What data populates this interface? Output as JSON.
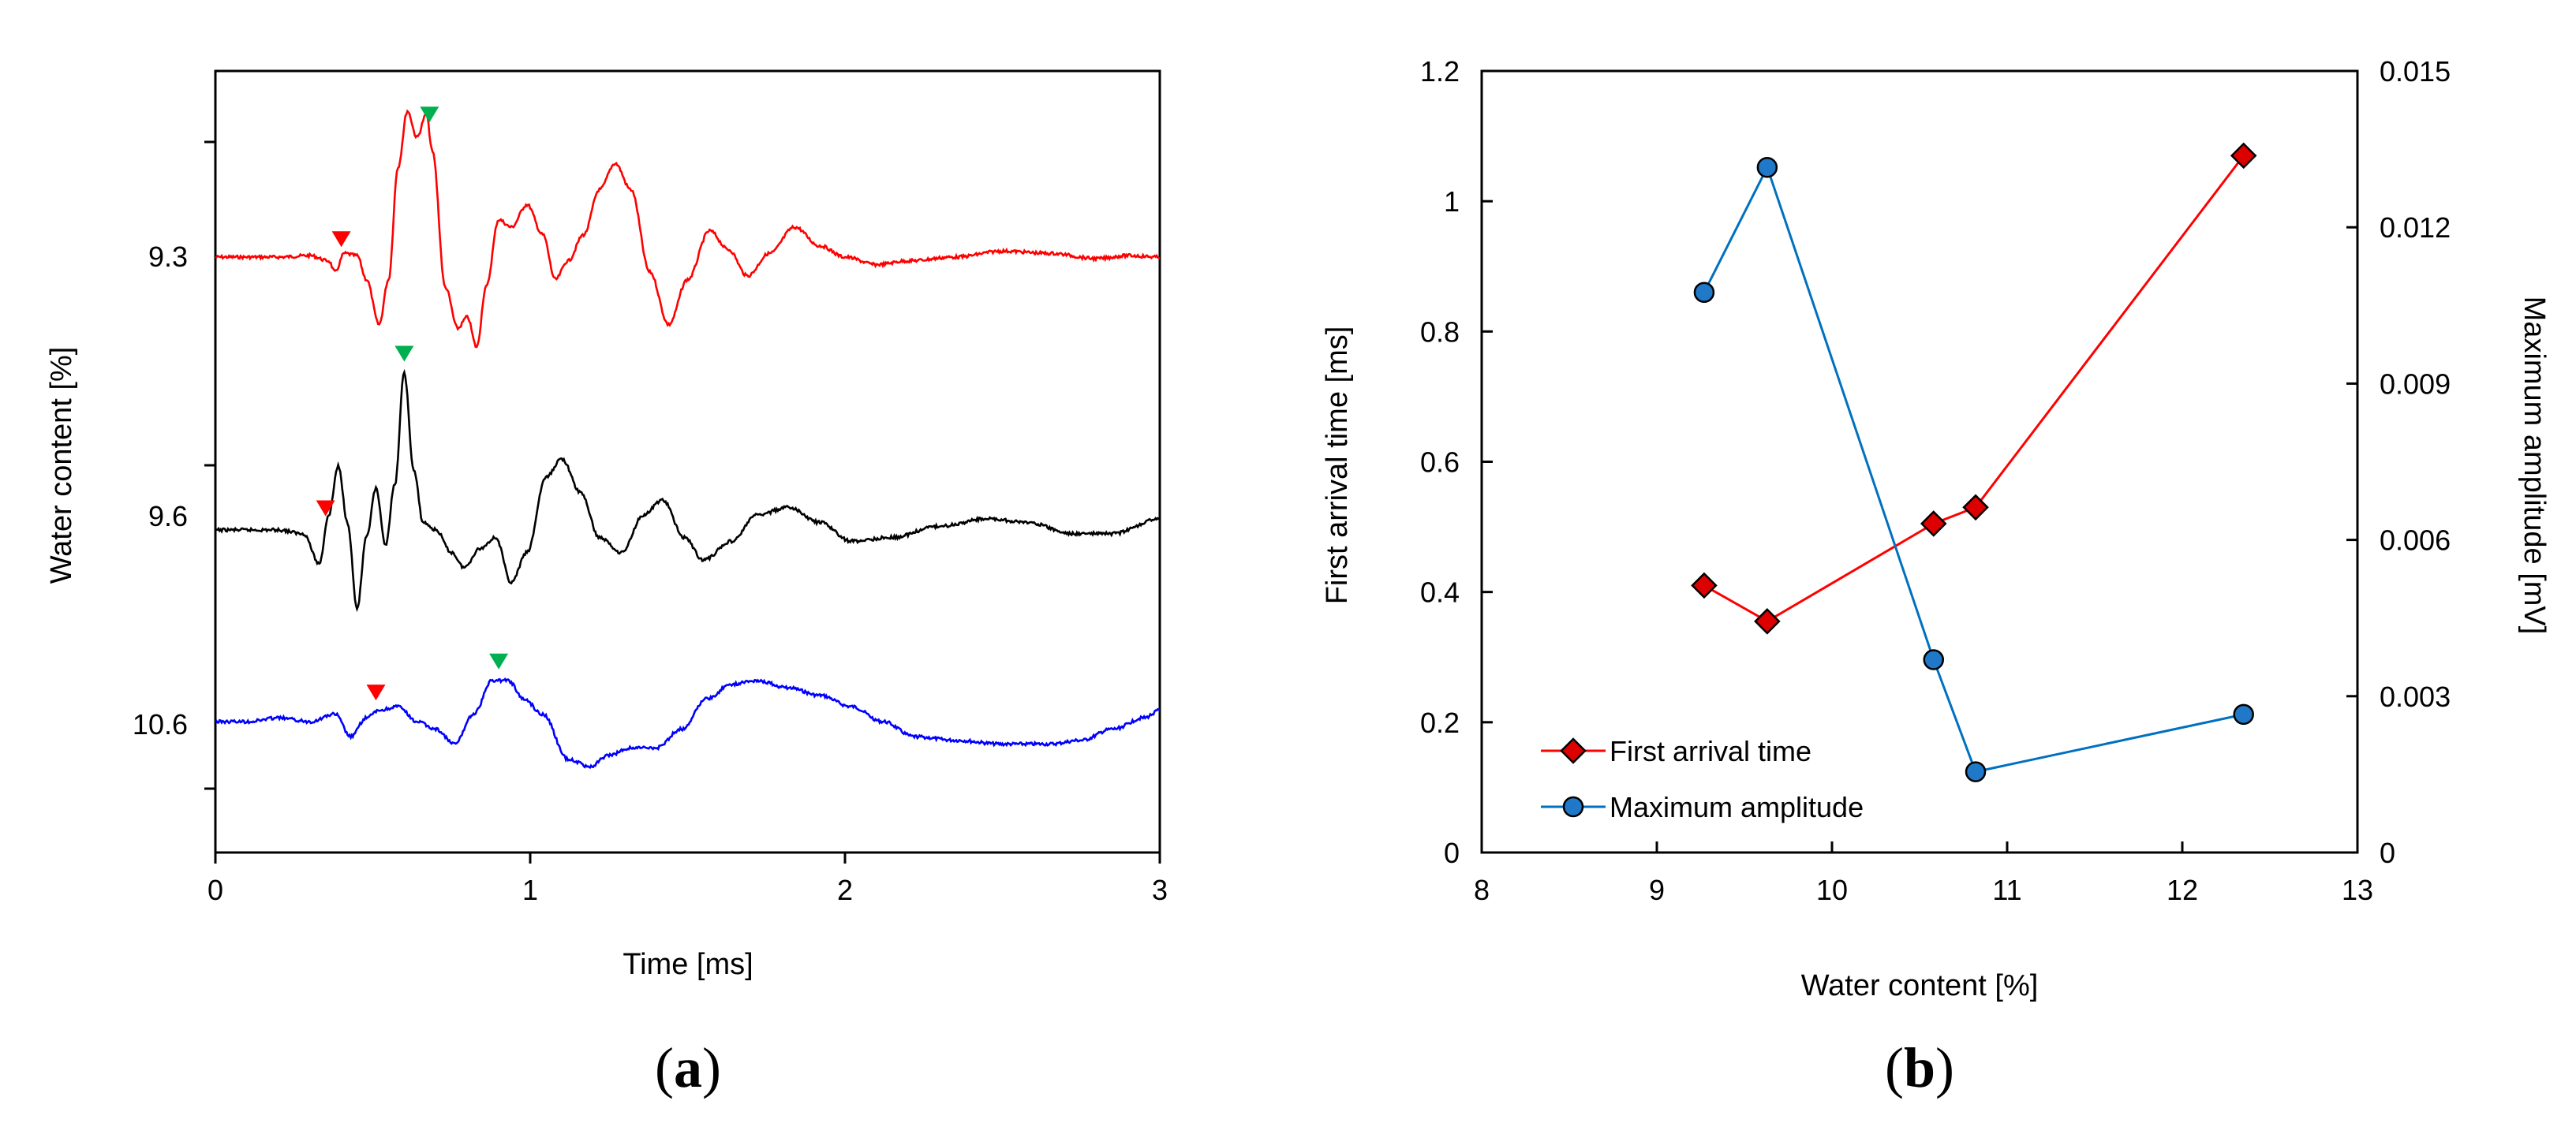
{
  "chart_data": [
    {
      "panel": "(a)",
      "type": "line",
      "panel_label_open": "(",
      "panel_label_letter": "a",
      "panel_label_close": ")",
      "xlabel": "Time [ms]",
      "ylabel": "Water content [%]",
      "xlim": [
        0,
        3
      ],
      "x_ticks": [
        0,
        1,
        2,
        3
      ],
      "x_tick_labels": [
        "0",
        "1",
        "2",
        "3"
      ],
      "trace_labels": [
        "9.3",
        "9.6",
        "10.6"
      ],
      "series": [
        {
          "name": "9.3",
          "color": "#ff0000",
          "baseline_index": 0,
          "first_arrival_ms": 0.4,
          "max_amplitude_ms": 0.68,
          "waveform": [
            [
              0.0,
              0.0
            ],
            [
              0.1,
              0.0
            ],
            [
              0.2,
              0.0
            ],
            [
              0.3,
              0.02
            ],
            [
              0.36,
              -0.05
            ],
            [
              0.38,
              -0.2
            ],
            [
              0.41,
              0.05
            ],
            [
              0.45,
              0.02
            ],
            [
              0.48,
              -0.3
            ],
            [
              0.52,
              -0.9
            ],
            [
              0.55,
              -0.3
            ],
            [
              0.58,
              1.2
            ],
            [
              0.61,
              1.95
            ],
            [
              0.64,
              1.6
            ],
            [
              0.67,
              1.9
            ],
            [
              0.69,
              1.4
            ],
            [
              0.73,
              -0.4
            ],
            [
              0.77,
              -0.95
            ],
            [
              0.8,
              -0.8
            ],
            [
              0.83,
              -1.2
            ],
            [
              0.86,
              -0.4
            ],
            [
              0.9,
              0.5
            ],
            [
              0.94,
              0.4
            ],
            [
              0.99,
              0.7
            ],
            [
              1.04,
              0.3
            ],
            [
              1.08,
              -0.3
            ],
            [
              1.12,
              -0.05
            ],
            [
              1.17,
              0.3
            ],
            [
              1.22,
              0.9
            ],
            [
              1.27,
              1.25
            ],
            [
              1.32,
              0.9
            ],
            [
              1.38,
              -0.2
            ],
            [
              1.44,
              -0.9
            ],
            [
              1.5,
              -0.3
            ],
            [
              1.57,
              0.35
            ],
            [
              1.63,
              0.1
            ],
            [
              1.69,
              -0.25
            ],
            [
              1.76,
              0.05
            ],
            [
              1.84,
              0.4
            ],
            [
              1.92,
              0.15
            ],
            [
              2.0,
              0.0
            ],
            [
              2.1,
              -0.1
            ],
            [
              2.2,
              -0.05
            ],
            [
              2.35,
              0.0
            ],
            [
              2.5,
              0.08
            ],
            [
              2.65,
              0.05
            ],
            [
              2.8,
              -0.02
            ],
            [
              2.9,
              0.02
            ],
            [
              3.0,
              0.0
            ]
          ]
        },
        {
          "name": "9.6",
          "color": "#000000",
          "baseline_index": 1,
          "first_arrival_ms": 0.35,
          "max_amplitude_ms": 0.6,
          "waveform": [
            [
              0.0,
              0.0
            ],
            [
              0.1,
              0.0
            ],
            [
              0.2,
              0.0
            ],
            [
              0.28,
              -0.05
            ],
            [
              0.33,
              -0.45
            ],
            [
              0.36,
              0.2
            ],
            [
              0.39,
              0.85
            ],
            [
              0.42,
              0.1
            ],
            [
              0.45,
              -1.05
            ],
            [
              0.48,
              -0.1
            ],
            [
              0.51,
              0.55
            ],
            [
              0.54,
              -0.2
            ],
            [
              0.57,
              0.6
            ],
            [
              0.6,
              2.1
            ],
            [
              0.63,
              0.8
            ],
            [
              0.66,
              0.1
            ],
            [
              0.7,
              0.0
            ],
            [
              0.75,
              -0.3
            ],
            [
              0.79,
              -0.5
            ],
            [
              0.84,
              -0.25
            ],
            [
              0.89,
              -0.1
            ],
            [
              0.94,
              -0.7
            ],
            [
              0.99,
              -0.3
            ],
            [
              1.05,
              0.7
            ],
            [
              1.1,
              0.95
            ],
            [
              1.16,
              0.5
            ],
            [
              1.22,
              -0.1
            ],
            [
              1.29,
              -0.3
            ],
            [
              1.36,
              0.2
            ],
            [
              1.42,
              0.4
            ],
            [
              1.49,
              -0.1
            ],
            [
              1.55,
              -0.4
            ],
            [
              1.64,
              -0.15
            ],
            [
              1.72,
              0.2
            ],
            [
              1.82,
              0.3
            ],
            [
              1.92,
              0.1
            ],
            [
              2.02,
              -0.15
            ],
            [
              2.15,
              -0.1
            ],
            [
              2.3,
              0.05
            ],
            [
              2.45,
              0.15
            ],
            [
              2.58,
              0.1
            ],
            [
              2.72,
              -0.05
            ],
            [
              2.85,
              -0.05
            ],
            [
              3.0,
              0.15
            ]
          ]
        },
        {
          "name": "10.6",
          "color": "#0000ff",
          "baseline_index": 2,
          "first_arrival_ms": 0.51,
          "max_amplitude_ms": 0.9,
          "waveform": [
            [
              0.0,
              0.0
            ],
            [
              0.1,
              0.0
            ],
            [
              0.2,
              0.05
            ],
            [
              0.3,
              0.0
            ],
            [
              0.38,
              0.1
            ],
            [
              0.43,
              -0.2
            ],
            [
              0.48,
              0.05
            ],
            [
              0.52,
              0.15
            ],
            [
              0.58,
              0.2
            ],
            [
              0.64,
              0.0
            ],
            [
              0.7,
              -0.1
            ],
            [
              0.76,
              -0.3
            ],
            [
              0.82,
              0.1
            ],
            [
              0.88,
              0.55
            ],
            [
              0.93,
              0.55
            ],
            [
              0.98,
              0.3
            ],
            [
              1.04,
              0.1
            ],
            [
              1.12,
              -0.5
            ],
            [
              1.19,
              -0.6
            ],
            [
              1.25,
              -0.45
            ],
            [
              1.32,
              -0.35
            ],
            [
              1.4,
              -0.35
            ],
            [
              1.48,
              -0.1
            ],
            [
              1.56,
              0.3
            ],
            [
              1.64,
              0.5
            ],
            [
              1.72,
              0.55
            ],
            [
              1.82,
              0.45
            ],
            [
              1.92,
              0.35
            ],
            [
              2.02,
              0.2
            ],
            [
              2.12,
              0.0
            ],
            [
              2.22,
              -0.2
            ],
            [
              2.35,
              -0.25
            ],
            [
              2.5,
              -0.3
            ],
            [
              2.65,
              -0.3
            ],
            [
              2.75,
              -0.25
            ],
            [
              2.85,
              -0.1
            ],
            [
              2.95,
              0.05
            ],
            [
              3.0,
              0.15
            ]
          ]
        }
      ]
    },
    {
      "panel": "(b)",
      "type": "line",
      "panel_label_open": "(",
      "panel_label_letter": "b",
      "panel_label_close": ")",
      "xlabel": "Water content [%]",
      "ylabel": "First arrival time [ms]",
      "y2label": "Maximum amplitude [mV]",
      "xlim": [
        8,
        13
      ],
      "ylim": [
        0,
        1.2
      ],
      "y2lim": [
        0,
        0.015
      ],
      "x_tick_labels": [
        "8",
        "9",
        "10",
        "11",
        "12",
        "13"
      ],
      "y_tick_labels": [
        "0",
        "0.2",
        "0.4",
        "0.6",
        "0.8",
        "1",
        "1.2"
      ],
      "y2_tick_labels": [
        "0",
        "0.003",
        "0.006",
        "0.009",
        "0.012",
        "0.015"
      ],
      "legend_position": "lower-left",
      "series": [
        {
          "name": "First arrival time",
          "axis": "left",
          "marker": "diamond",
          "color": "#ff0000",
          "marker_fill": "#dd0000",
          "x": [
            9.27,
            9.63,
            10.58,
            10.82,
            12.35
          ],
          "y": [
            0.41,
            0.355,
            0.505,
            0.53,
            1.07
          ]
        },
        {
          "name": "Maximum amplitude",
          "axis": "right",
          "marker": "circle",
          "color": "#0070c0",
          "marker_fill": "#1f78c8",
          "x": [
            9.27,
            9.63,
            10.58,
            10.82,
            12.35
          ],
          "y": [
            0.01075,
            0.01315,
            0.0037,
            0.00155,
            0.00265
          ]
        }
      ]
    }
  ]
}
